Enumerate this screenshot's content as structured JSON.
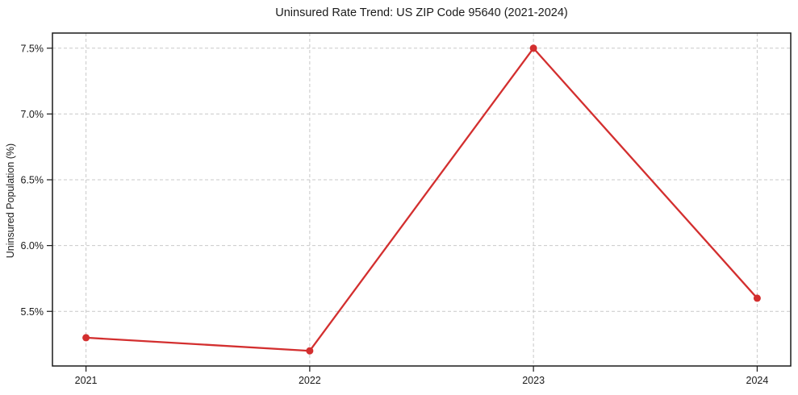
{
  "chart_data": {
    "type": "line",
    "title": "Uninsured Rate Trend: US ZIP Code 95640 (2021-2024)",
    "xlabel": "",
    "ylabel": "Uninsured Population (%)",
    "x": [
      2021,
      2022,
      2023,
      2024
    ],
    "series": [
      {
        "name": "Uninsured Rate",
        "values": [
          5.3,
          5.2,
          7.5,
          5.6
        ]
      }
    ],
    "x_tick_labels": [
      "2021",
      "2022",
      "2023",
      "2024"
    ],
    "y_ticks": [
      5.5,
      6.0,
      6.5,
      7.0,
      7.5
    ],
    "y_tick_labels": [
      "5.5%",
      "6.0%",
      "6.5%",
      "7.0%",
      "7.5%"
    ],
    "xlim": [
      2020.85,
      2024.15
    ],
    "ylim": [
      5.085,
      7.615
    ],
    "grid": true,
    "grid_style": "dashed",
    "legend_position": "none",
    "colors": {
      "line": "#d32f2f",
      "marker": "#d32f2f",
      "grid": "#c9c9c9",
      "axis": "#1a1a1a",
      "tick_text": "#1a1a1a",
      "background": "#ffffff"
    }
  }
}
